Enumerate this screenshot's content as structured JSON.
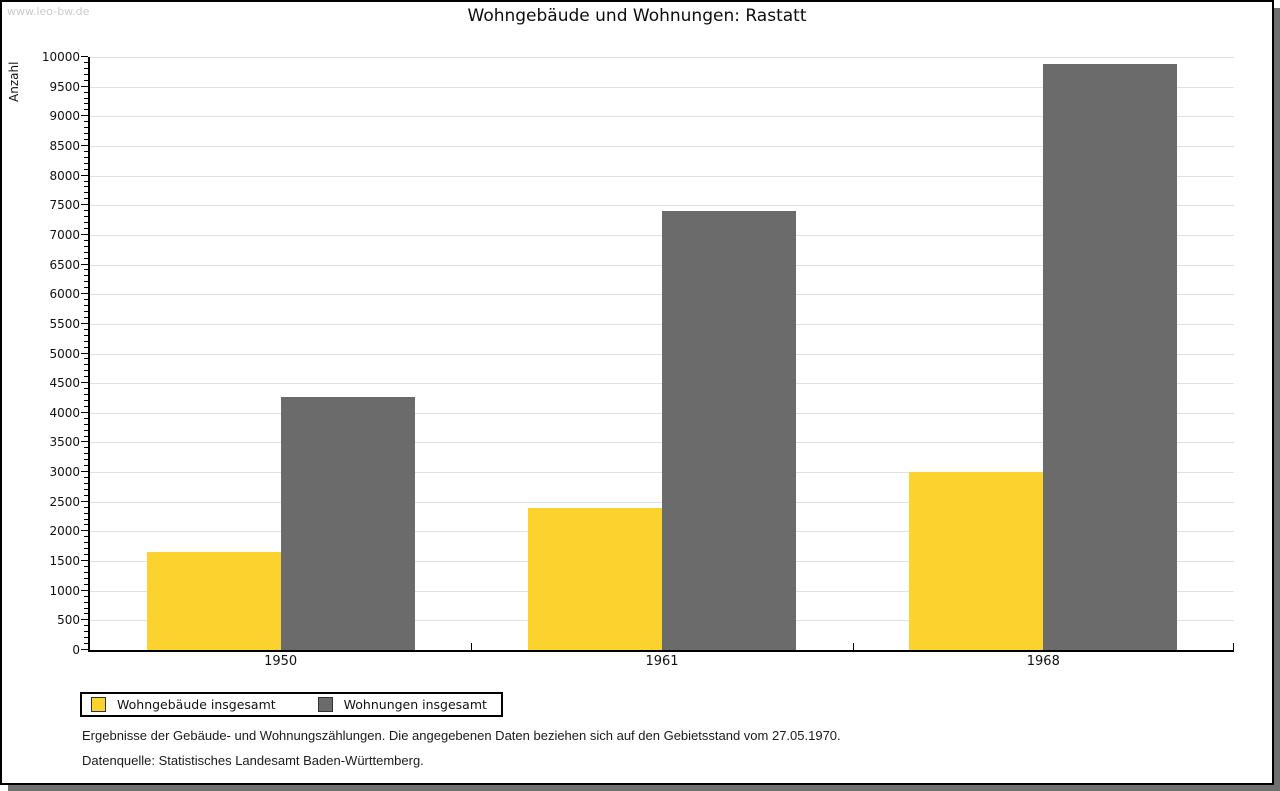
{
  "watermark": "www.leo-bw.de",
  "title": "Wohngebäude und Wohnungen: Rastatt",
  "chart_data": {
    "type": "bar",
    "title": "Wohngebäude und Wohnungen: Rastatt",
    "categories": [
      "1950",
      "1961",
      "1968"
    ],
    "series": [
      {
        "name": "Wohngebäude insgesamt",
        "color": "#fcd32e",
        "values": [
          1650,
          2390,
          3010
        ]
      },
      {
        "name": "Wohnungen insgesamt",
        "color": "#6b6b6b",
        "values": [
          4270,
          7400,
          9880
        ]
      }
    ],
    "ylabel": "Anzahl",
    "xlabel": "",
    "ylim": [
      0,
      10000
    ],
    "ytick_step": 500,
    "ytick_minor_step": 100,
    "grid": true,
    "gridline_color": "#e0e0e0",
    "legend_position": "bottom-left"
  },
  "footnotes": [
    "Ergebnisse der Gebäude- und Wohnungszählungen. Die angegebenen Daten beziehen sich auf den Gebietsstand vom 27.05.1970.",
    "Datenquelle: Statistisches Landesamt Baden-Württemberg."
  ]
}
